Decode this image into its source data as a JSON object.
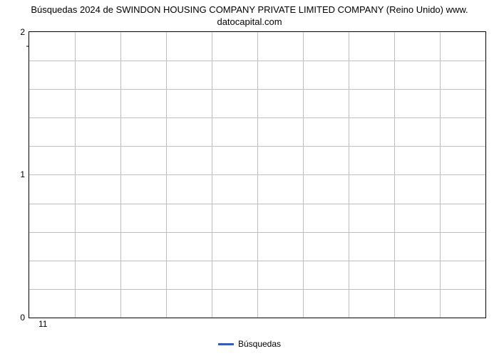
{
  "chart": {
    "type": "line",
    "title_line1": "Búsquedas 2024 de SWINDON HOUSING COMPANY PRIVATE LIMITED COMPANY (Reino Unido) www.",
    "title_line2": "datocapital.com",
    "title_fontsize": 13,
    "title_color": "#000000",
    "background_color": "#ffffff",
    "plot_border_color": "#000000",
    "grid_color": "#bfbfbf",
    "y_axis": {
      "min": 0,
      "max": 2,
      "major_ticks": [
        0,
        1,
        2
      ],
      "minor_grid_count_between": 4,
      "tick_fontsize": 12,
      "minor_tick_at": 1.9
    },
    "x_axis": {
      "tick_labels": [
        "11"
      ],
      "tick_positions_pct": [
        3
      ],
      "grid_lines_count": 10,
      "tick_fontsize": 12
    },
    "series": [
      {
        "name": "Búsquedas",
        "color": "#2b5bd7",
        "line_width": 3,
        "values": []
      }
    ],
    "legend": {
      "position": "bottom-center",
      "items": [
        {
          "label": "Búsquedas",
          "color": "#2b5bd7"
        }
      ],
      "fontsize": 12
    }
  }
}
